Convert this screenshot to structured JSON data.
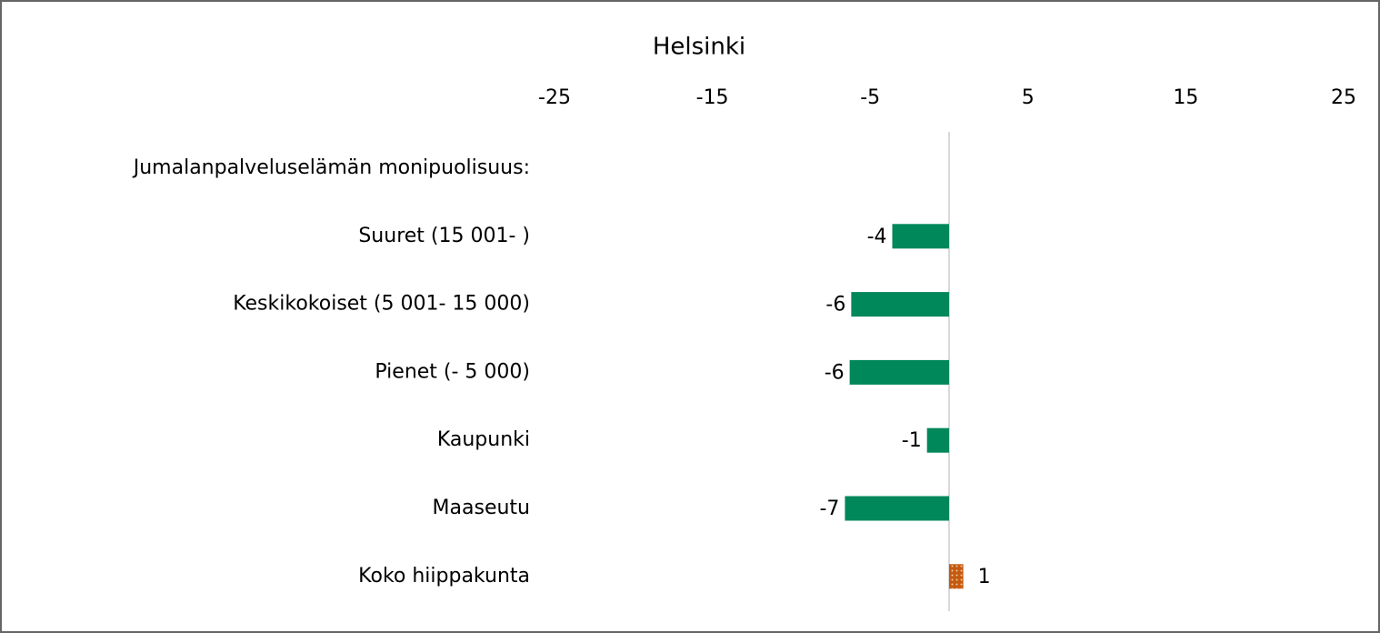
{
  "chart_data": {
    "type": "bar",
    "orientation": "horizontal",
    "title": "Helsinki",
    "categories": [
      "Jumalanpalveluselämän monipuolisuus:",
      "Suuret (15 001- )",
      "Keskikokoiset (5 001- 15 000)",
      "Pienet (- 5 000)",
      "Kaupunki",
      "Maaseutu",
      "Koko hiippakunta"
    ],
    "values": [
      null,
      -3.6,
      -6.2,
      -6.3,
      -1.4,
      -6.6,
      0.9
    ],
    "value_labels": [
      null,
      "-4",
      "-6",
      "-6",
      "-1",
      "-7",
      "1"
    ],
    "colors": [
      null,
      "#00875a",
      "#00875a",
      "#00875a",
      "#00875a",
      "#00875a",
      "#c55a11"
    ],
    "patterns": [
      null,
      null,
      null,
      null,
      null,
      null,
      "dots"
    ],
    "xlim": [
      -25,
      25
    ],
    "xticks": [
      -25,
      -15,
      -5,
      5,
      15,
      25
    ],
    "xaxis_position": "top"
  }
}
